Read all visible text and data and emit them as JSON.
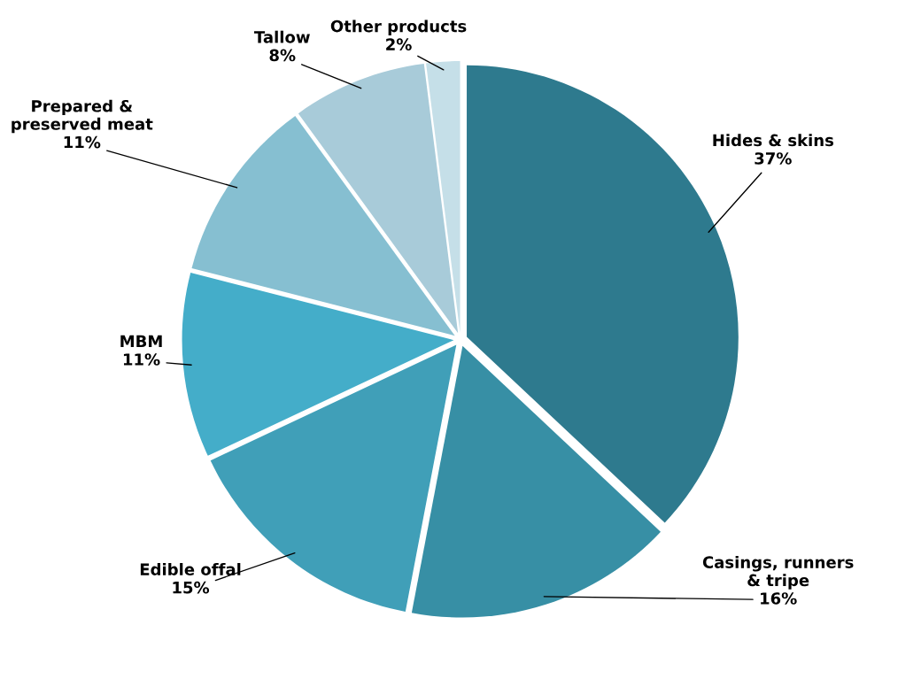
{
  "chart_data": {
    "type": "pie",
    "categories": [
      "Hides & skins",
      "Casings, runners & tripe",
      "Edible offal",
      "MBM",
      "Prepared & preserved meat",
      "Tallow",
      "Other products"
    ],
    "values": [
      37,
      16,
      15,
      11,
      11,
      8,
      2
    ],
    "colors": [
      "#2e7a8e",
      "#378fa5",
      "#409fb8",
      "#44adc9",
      "#86bfd1",
      "#a8cbd9",
      "#c5dfe8"
    ],
    "value_labels": [
      "37%",
      "16%",
      "15%",
      "11%",
      "11%",
      "8%",
      "2%"
    ],
    "legend": false
  }
}
